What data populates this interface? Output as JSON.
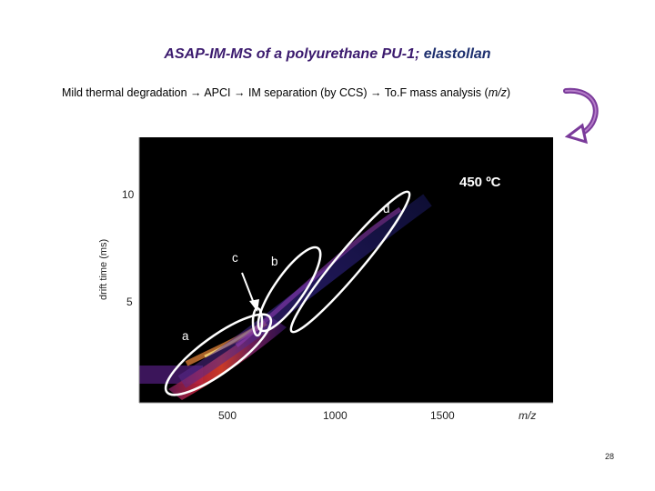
{
  "title": {
    "main": "ASAP-IM-MS of a polyurethane PU-1; ",
    "tail": "elastollan"
  },
  "subtitle": {
    "pre": "Mild thermal degradation → APCI → IM separation (by CCS) → To.F mass analysis (",
    "italic": "m/z",
    "post": ")"
  },
  "plot": {
    "ylabel": "drift time (ms)",
    "yticks": [
      "10",
      "5"
    ],
    "xticks": [
      "500",
      "1000",
      "1500"
    ],
    "xlabel": "m/z",
    "temperature": "450 ºC",
    "region_labels": [
      "a",
      "b",
      "c",
      "d"
    ]
  },
  "page_number": "28",
  "icons": {
    "arrow": "curved-return-arrow-icon"
  },
  "colors": {
    "title": "#3b1a6e",
    "arrow": "#7a3a9a",
    "plot_bg": "#000000"
  }
}
